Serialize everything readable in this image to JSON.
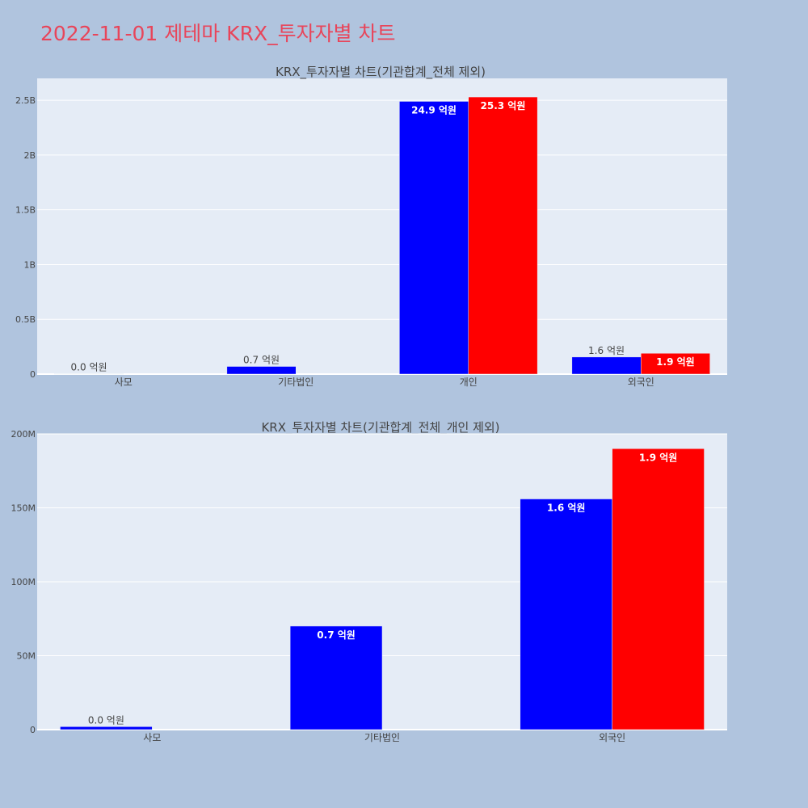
{
  "page": {
    "title": "2022-11-01 제테마 KRX_투자자별 차트"
  },
  "colors": {
    "background": "#b0c4de",
    "plot_bg": "#e5ecf6",
    "title": "#e8455a",
    "series_a": "#0000ff",
    "series_b": "#ff0000",
    "text": "#444444"
  },
  "chart_data": [
    {
      "type": "bar",
      "title": "KRX_투자자별 차트(기관합계_전체 제외)",
      "categories": [
        "사모",
        "기타법인",
        "개인",
        "외국인"
      ],
      "ylim": [
        0,
        2700000000
      ],
      "yticks": [
        0,
        500000000,
        1000000000,
        1500000000,
        2000000000,
        2500000000
      ],
      "ytick_labels": [
        "0",
        "0.5B",
        "1B",
        "1.5B",
        "2B",
        "2.5B"
      ],
      "grid": true,
      "series": [
        {
          "values": [
            2000000,
            70000000,
            2490000000,
            156000000
          ],
          "labels": [
            "0.0 억원",
            "0.7 억원",
            "24.9 억원",
            "1.6 억원"
          ],
          "color": "#0000ff"
        },
        {
          "values": [
            null,
            null,
            2530000000,
            190000000
          ],
          "labels": [
            null,
            null,
            "25.3 억원",
            "1.9 억원"
          ],
          "color": "#ff0000"
        }
      ]
    },
    {
      "type": "bar",
      "title": "KRX_투자자별 차트(기관합계_전체_개인 제외)",
      "categories": [
        "사모",
        "기타법인",
        "외국인"
      ],
      "ylim": [
        0,
        200000000
      ],
      "yticks": [
        0,
        50000000,
        100000000,
        150000000,
        200000000
      ],
      "ytick_labels": [
        "0",
        "50M",
        "100M",
        "150M",
        "200M"
      ],
      "grid": true,
      "series": [
        {
          "values": [
            2000000,
            70000000,
            156000000
          ],
          "labels": [
            "0.0 억원",
            "0.7 억원",
            "1.6 억원"
          ],
          "color": "#0000ff"
        },
        {
          "values": [
            null,
            null,
            190000000
          ],
          "labels": [
            null,
            null,
            "1.9 억원"
          ],
          "color": "#ff0000"
        }
      ]
    }
  ]
}
